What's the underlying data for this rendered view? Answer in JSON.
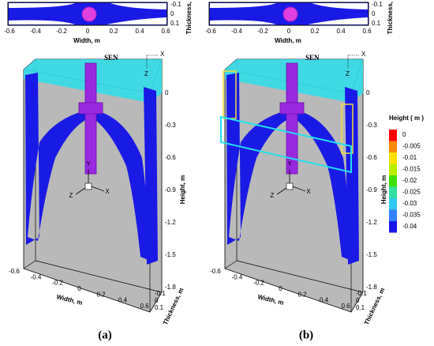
{
  "panels": [
    {
      "top_plot": {
        "x_ticks": [
          "-0.6",
          "-0.4",
          "-0.2",
          "0",
          "0.2",
          "0.4",
          "0.6"
        ],
        "x_label": "Width, m",
        "y_ticks": [
          "-0.1",
          "0",
          "0.1"
        ],
        "y_label": "Thickness, m"
      },
      "view": {
        "sen_label": "SEN",
        "height_ticks": [
          "0",
          "-0.3",
          "-0.6",
          "-0.9",
          "-1.2",
          "-1.5",
          "-1.8"
        ],
        "height_label": "Height, m",
        "width_ticks": [
          "-0.6",
          "-0.4",
          "-0.2",
          "0",
          "0.2",
          "0.4",
          "0.6"
        ],
        "width_label": "Width, m",
        "thickness_ticks": [
          "-0.1",
          "0",
          "0.1"
        ],
        "thickness_label": "Thickness, m",
        "triad": [
          "X",
          "Y",
          "Z"
        ],
        "corner_triad": [
          "X",
          "Z"
        ]
      },
      "caption": "(a)"
    },
    {
      "top_plot": {
        "x_ticks": [
          "-0.6",
          "-0.4",
          "-0.2",
          "0",
          "0.2",
          "0.4",
          "0.6"
        ],
        "x_label": "Width, m",
        "y_ticks": [
          "-0.1",
          "0",
          "0.1"
        ],
        "y_label": "Thickness, m"
      },
      "view": {
        "sen_label": "SEN",
        "height_ticks": [
          "0",
          "-0.3",
          "-0.6",
          "-0.9",
          "-1.2",
          "-1.5",
          "-1.8"
        ],
        "height_label": "Height, m",
        "width_ticks": [
          "-0.6",
          "-0.4",
          "-0.2",
          "0",
          "0.2",
          "0.4",
          "0.6"
        ],
        "width_label": "Width, m",
        "thickness_ticks": [
          "-0.1",
          "0",
          "0.1"
        ],
        "thickness_label": "Thickness, m",
        "triad": [
          "X",
          "Y",
          "Z"
        ],
        "corner_triad": [
          "X",
          "Z"
        ]
      },
      "caption": "(b)"
    }
  ],
  "legend": {
    "title": "Height ( m )",
    "entries": [
      {
        "label": "0",
        "color": "#ff0000"
      },
      {
        "label": "-0.005",
        "color": "#ff8a00"
      },
      {
        "label": "-0.01",
        "color": "#ffe000"
      },
      {
        "label": "-0.015",
        "color": "#b8f000"
      },
      {
        "label": "-0.02",
        "color": "#40e000"
      },
      {
        "label": "-0.025",
        "color": "#30e0a0"
      },
      {
        "label": "-0.03",
        "color": "#30c8f0"
      },
      {
        "label": "-0.035",
        "color": "#3080ff"
      },
      {
        "label": "-0.04",
        "color": "#1818e8"
      }
    ]
  }
}
